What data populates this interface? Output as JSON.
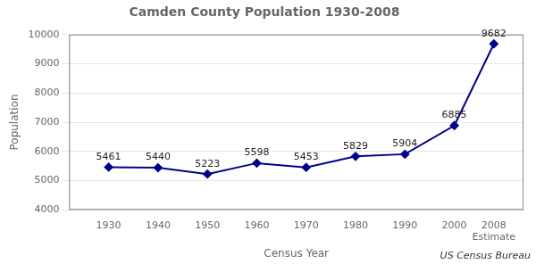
{
  "chart_data": {
    "type": "line",
    "title": "Camden County Population 1930-2008",
    "x_label": "Census Year",
    "y_label": "Population",
    "x": [
      1930,
      1940,
      1950,
      1960,
      1970,
      1980,
      1990,
      2000,
      2008
    ],
    "values": [
      5461,
      5440,
      5223,
      5598,
      5453,
      5829,
      5904,
      6885,
      9682
    ],
    "color": "#00008B",
    "marker": "diamond",
    "line_style": "solid",
    "data_labels": true,
    "xlim": [
      1922,
      2014
    ],
    "xticks": [
      1930,
      1940,
      1950,
      1960,
      1970,
      1980,
      1990,
      2000,
      {
        "value": 2008,
        "label": "2008\nEstimate"
      }
    ],
    "ylim": [
      4000,
      10000
    ],
    "yticks": [
      4000,
      5000,
      6000,
      7000,
      8000,
      9000,
      10000
    ],
    "grid": "y",
    "annotations": [
      "US Census Bureau"
    ]
  }
}
